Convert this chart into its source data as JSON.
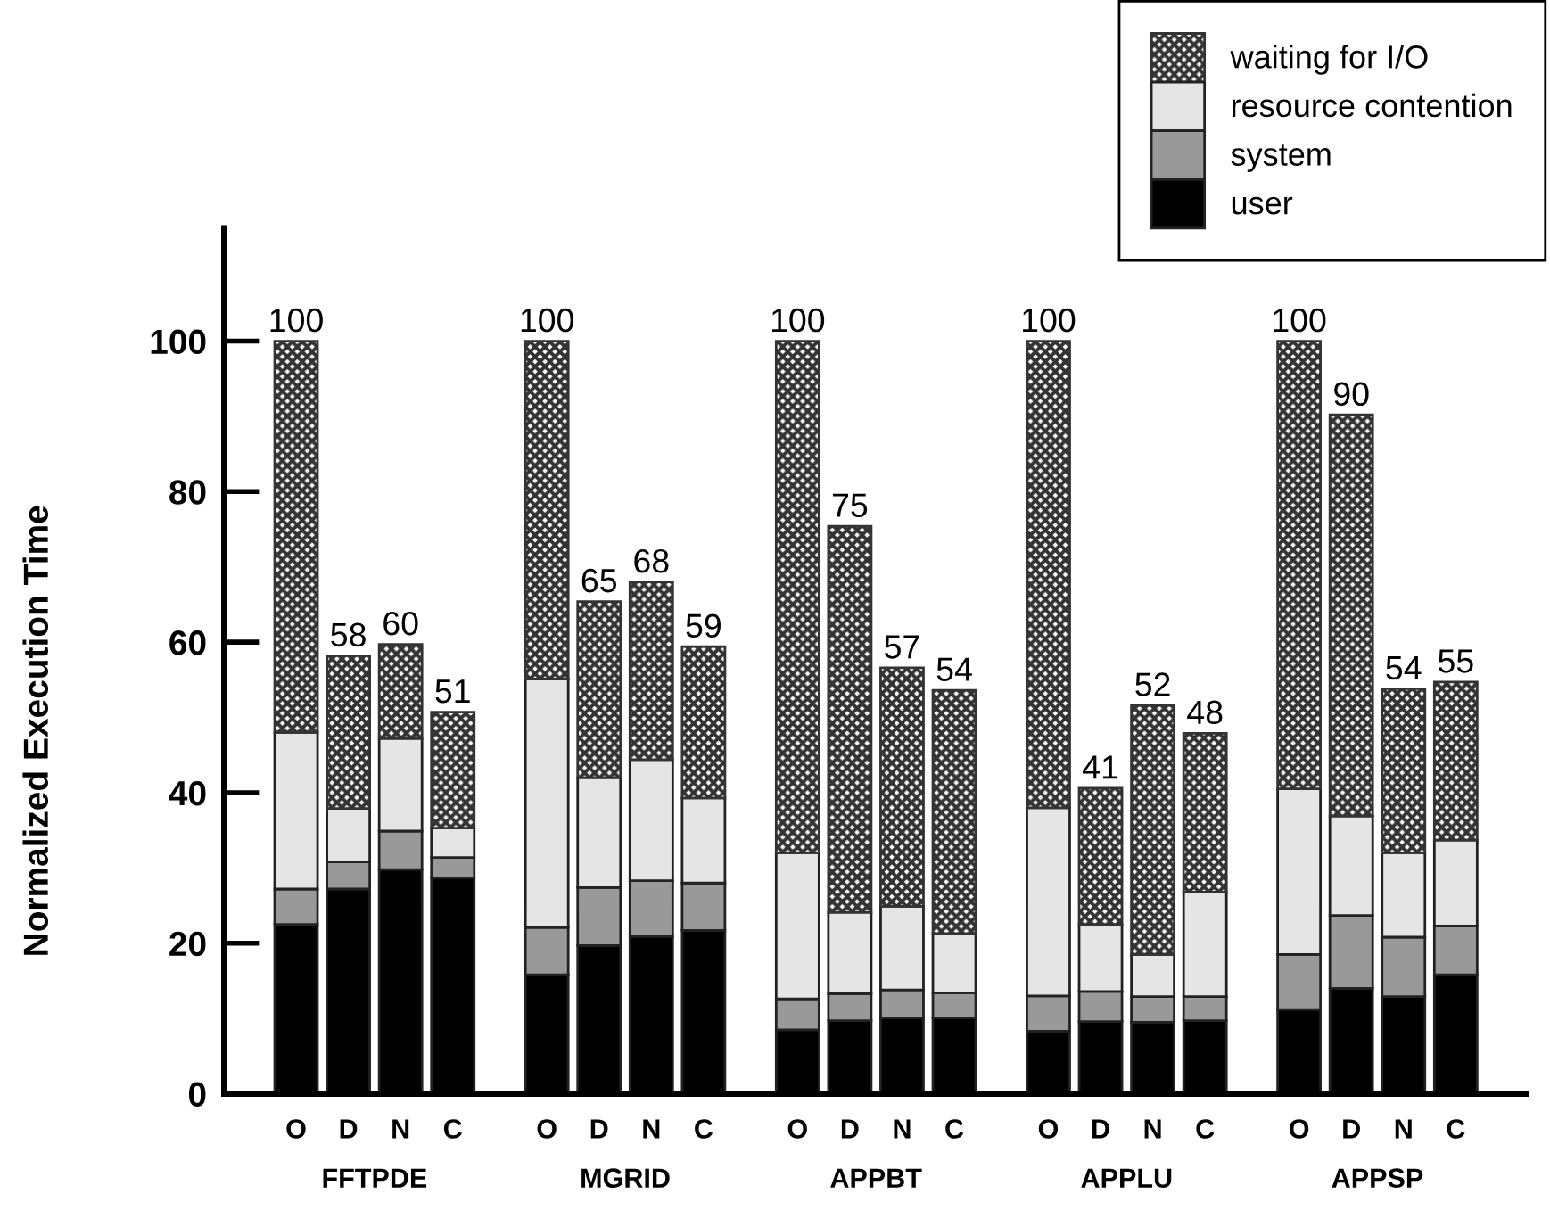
{
  "chart_data": {
    "type": "bar",
    "stacked": true,
    "ylabel": "Normalized Execution Time",
    "categories": [
      "O",
      "D",
      "N",
      "C",
      "O",
      "D",
      "N",
      "C",
      "O",
      "D",
      "N",
      "C",
      "O",
      "D",
      "N",
      "C",
      "O",
      "D",
      "N",
      "C"
    ],
    "annotations": [
      "FFTPDE",
      "MGRID",
      "APPBT",
      "APPLU",
      "APPSP"
    ],
    "series": [
      {
        "name": "user",
        "color": "#000000",
        "values": [
          22.5,
          27.2,
          29.8,
          28.7,
          15.8,
          19.7,
          20.9,
          21.7,
          8.5,
          9.7,
          10.1,
          10.1,
          8.3,
          9.6,
          9.5,
          9.7,
          11.2,
          14.0,
          12.9,
          15.8
        ]
      },
      {
        "name": "system",
        "color": "#999999",
        "values": [
          4.7,
          3.6,
          5.1,
          2.7,
          6.3,
          7.7,
          7.4,
          6.3,
          4.1,
          3.6,
          3.7,
          3.3,
          4.7,
          4.0,
          3.4,
          3.2,
          7.3,
          9.7,
          7.9,
          6.5
        ]
      },
      {
        "name": "resource contention",
        "color": "#e5e5e5",
        "values": [
          20.8,
          7.1,
          12.3,
          3.9,
          33.0,
          14.6,
          16.1,
          11.3,
          19.4,
          10.8,
          11.1,
          7.9,
          25.0,
          8.9,
          5.6,
          13.9,
          22.0,
          13.2,
          11.2,
          11.4
        ]
      },
      {
        "name": "waiting for I/O",
        "color": "#333333",
        "values": [
          52.0,
          20.3,
          12.5,
          15.4,
          44.9,
          23.4,
          23.6,
          20.1,
          68.0,
          51.3,
          31.7,
          32.3,
          62.0,
          18.1,
          33.1,
          21.1,
          59.5,
          53.3,
          21.8,
          21.0
        ]
      }
    ],
    "totals": [
      "100",
      "58",
      "60",
      "51",
      "100",
      "65",
      "68",
      "59",
      "100",
      "75",
      "57",
      "54",
      "100",
      "41",
      "52",
      "48",
      "100",
      "90",
      "54",
      "55"
    ],
    "ylim": [
      0,
      115
    ],
    "yticks": [
      0,
      20,
      40,
      60,
      80,
      100
    ],
    "legend": "top right",
    "grid": false
  }
}
